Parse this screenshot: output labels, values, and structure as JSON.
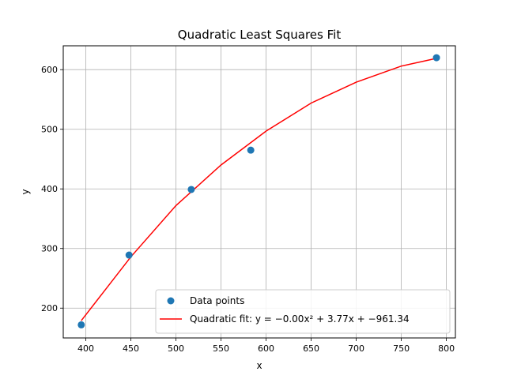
{
  "chart_data": {
    "type": "scatter",
    "title": "Quadratic Least Squares Fit",
    "xlabel": "x",
    "ylabel": "y",
    "xlim": [
      375,
      810
    ],
    "ylim": [
      150,
      640
    ],
    "xticks": [
      400,
      450,
      500,
      550,
      600,
      650,
      700,
      750,
      800
    ],
    "yticks": [
      200,
      300,
      400,
      500,
      600
    ],
    "grid": true,
    "legend_placement": "lower-right",
    "series": [
      {
        "name": "Data points",
        "type": "scatter",
        "color": "#1f77b4",
        "points": [
          {
            "x": 395,
            "y": 172
          },
          {
            "x": 448,
            "y": 289
          },
          {
            "x": 517,
            "y": 399
          },
          {
            "x": 583,
            "y": 465
          },
          {
            "x": 789,
            "y": 620
          }
        ]
      },
      {
        "name": "Quadratic fit: y = −0.00x² + 3.77x + −961.34",
        "type": "line",
        "color": "#ff0000",
        "points": [
          {
            "x": 395,
            "y": 179
          },
          {
            "x": 450,
            "y": 286
          },
          {
            "x": 500,
            "y": 372
          },
          {
            "x": 550,
            "y": 440
          },
          {
            "x": 600,
            "y": 497
          },
          {
            "x": 650,
            "y": 544
          },
          {
            "x": 700,
            "y": 579
          },
          {
            "x": 750,
            "y": 606
          },
          {
            "x": 789,
            "y": 619
          }
        ]
      }
    ]
  }
}
